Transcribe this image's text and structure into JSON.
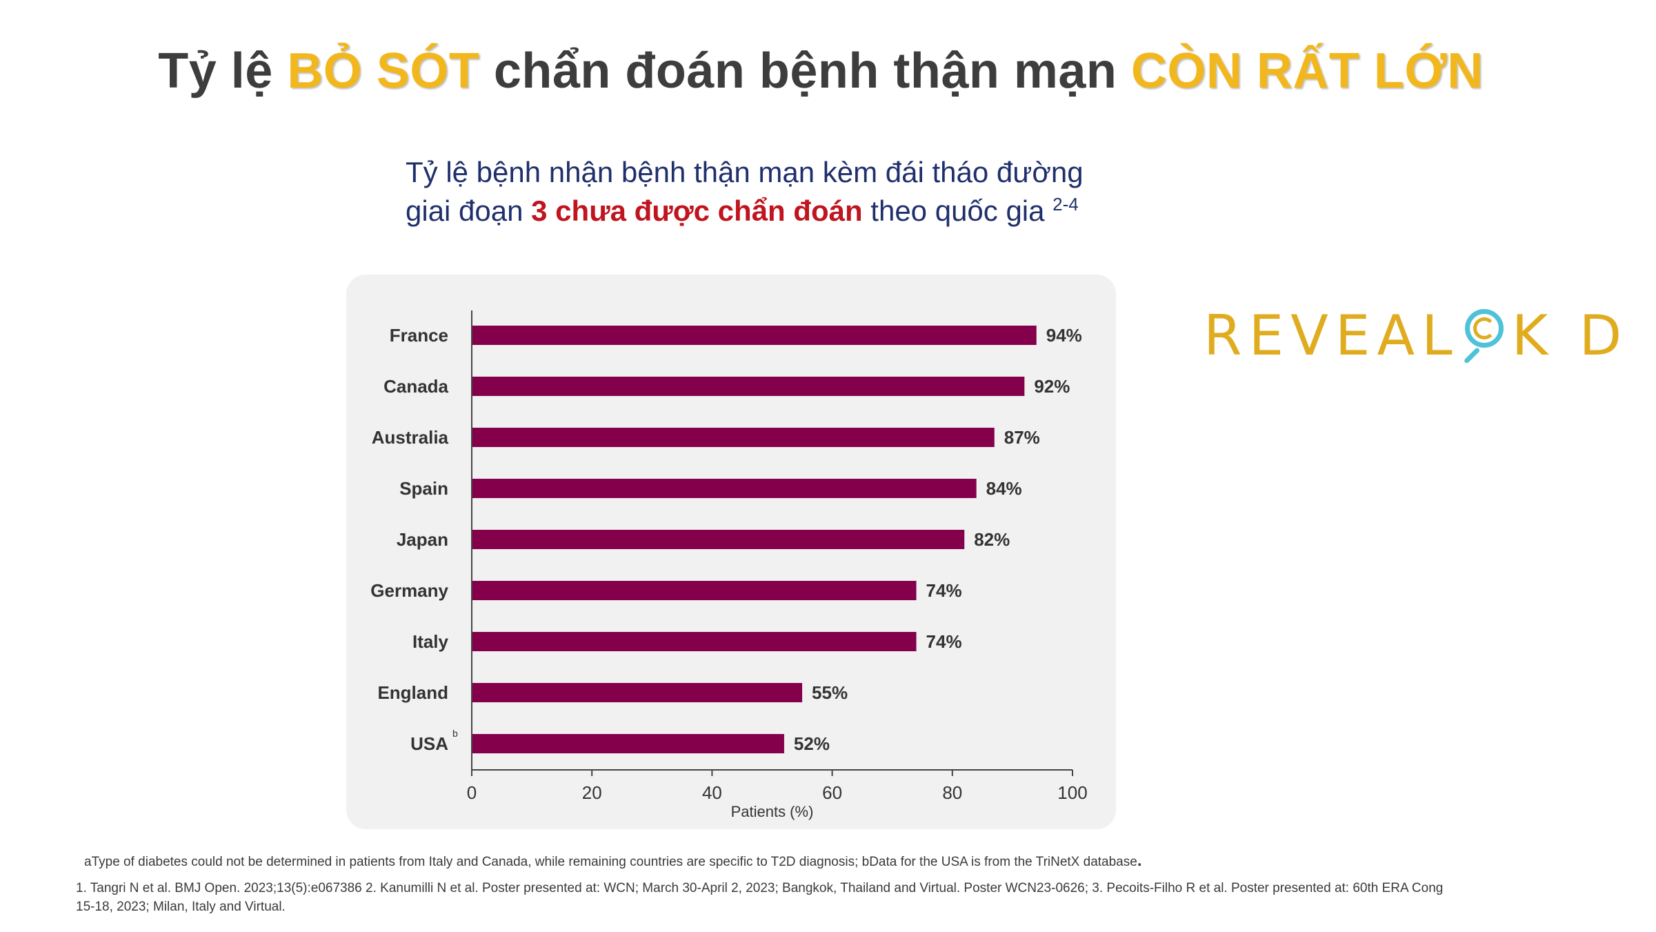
{
  "title": {
    "part1": "Tỷ lệ ",
    "highlight1": "BỎ SÓT",
    "part2": " chẩn đoán bệnh thận mạn ",
    "highlight2": "CÒN RẤT LỚN"
  },
  "subtitle": {
    "line1": "Tỷ lệ bệnh nhận bệnh thận mạn kèm đái tháo đường",
    "line2_pre": "giai đoạn ",
    "line2_red": "3 chưa được chẩn đoán",
    "line2_post": " theo quốc gia ",
    "sup": "2-4"
  },
  "logo": {
    "left": "REVEAL",
    "right": "K D"
  },
  "chart_data": {
    "type": "bar",
    "orientation": "horizontal",
    "categories": [
      "France",
      "Canada",
      "Australia",
      "Spain",
      "Japan",
      "Germany",
      "Italy",
      "England",
      "USA"
    ],
    "category_superscripts": {
      "USA": "b"
    },
    "values": [
      94,
      92,
      87,
      84,
      82,
      74,
      74,
      55,
      52
    ],
    "value_labels": [
      "94%",
      "92%",
      "87%",
      "84%",
      "82%",
      "74%",
      "74%",
      "55%",
      "52%"
    ],
    "xlabel": "Patients (%)",
    "ylabel": "",
    "xlim": [
      0,
      100
    ],
    "xticks": [
      0,
      20,
      40,
      60,
      80,
      100
    ],
    "grid": false,
    "bar_color": "#85004b"
  },
  "footnote": "aType of diabetes could not be determined in patients from Italy and Canada, while remaining countries are specific to T2D diagnosis; bData for the USA is from the TriNetX database",
  "footnote_dot": ".",
  "references": {
    "line1": "1. Tangri N et al. BMJ Open. 2023;13(5):e067386 2. Kanumilli N et al. Poster presented at: WCN; March 30-April 2, 2023; Bangkok, Thailand and Virtual. Poster WCN23-0626; 3. Pecoits-Filho R et al. Poster presented at: 60th ERA Cong",
    "line2": "15-18, 2023; Milan, Italy and Virtual."
  }
}
